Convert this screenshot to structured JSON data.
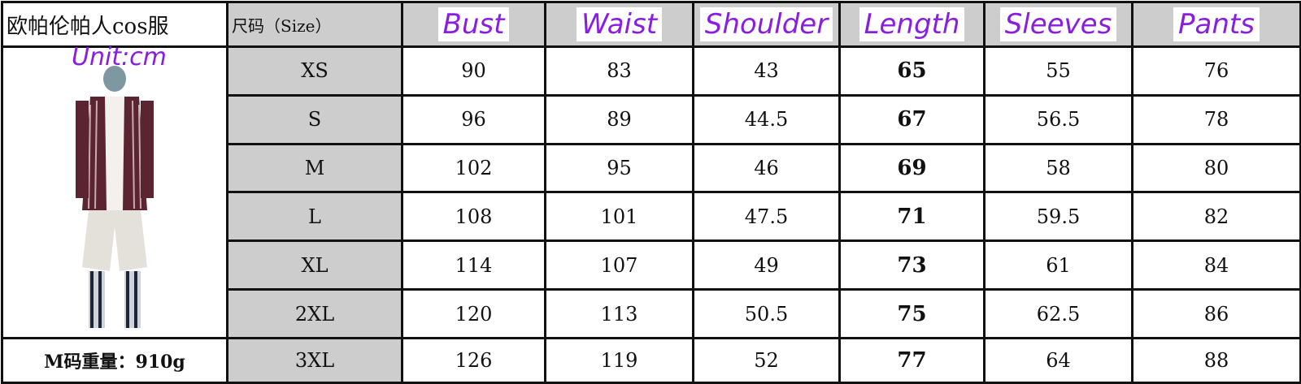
{
  "title": "欧帕伦帕人cos服",
  "unit_note": "Unit:cm",
  "weight_note": "M码重量：910g",
  "columns": {
    "size": "尺码（Size）",
    "bust": "Bust",
    "waist": "Waist",
    "shoulder": "Shoulder",
    "length": "Length",
    "sleeves": "Sleeves",
    "pants": "Pants"
  },
  "rows": [
    {
      "size": "XS",
      "bust": "90",
      "waist": "83",
      "shoulder": "43",
      "length": "65",
      "sleeves": "55",
      "pants": "76"
    },
    {
      "size": "S",
      "bust": "96",
      "waist": "89",
      "shoulder": "44.5",
      "length": "67",
      "sleeves": "56.5",
      "pants": "78"
    },
    {
      "size": "M",
      "bust": "102",
      "waist": "95",
      "shoulder": "46",
      "length": "69",
      "sleeves": "58",
      "pants": "80"
    },
    {
      "size": "L",
      "bust": "108",
      "waist": "101",
      "shoulder": "47.5",
      "length": "71",
      "sleeves": "59.5",
      "pants": "82"
    },
    {
      "size": "XL",
      "bust": "114",
      "waist": "107",
      "shoulder": "49",
      "length": "73",
      "sleeves": "61",
      "pants": "84"
    },
    {
      "size": "2XL",
      "bust": "120",
      "waist": "113",
      "shoulder": "50.5",
      "length": "75",
      "sleeves": "62.5",
      "pants": "86"
    },
    {
      "size": "3XL",
      "bust": "126",
      "waist": "119",
      "shoulder": "52",
      "length": "77",
      "sleeves": "64",
      "pants": "88"
    }
  ],
  "colors": {
    "header_text": "#8a1ee0",
    "size_column_bg": "#cdcdcd"
  }
}
